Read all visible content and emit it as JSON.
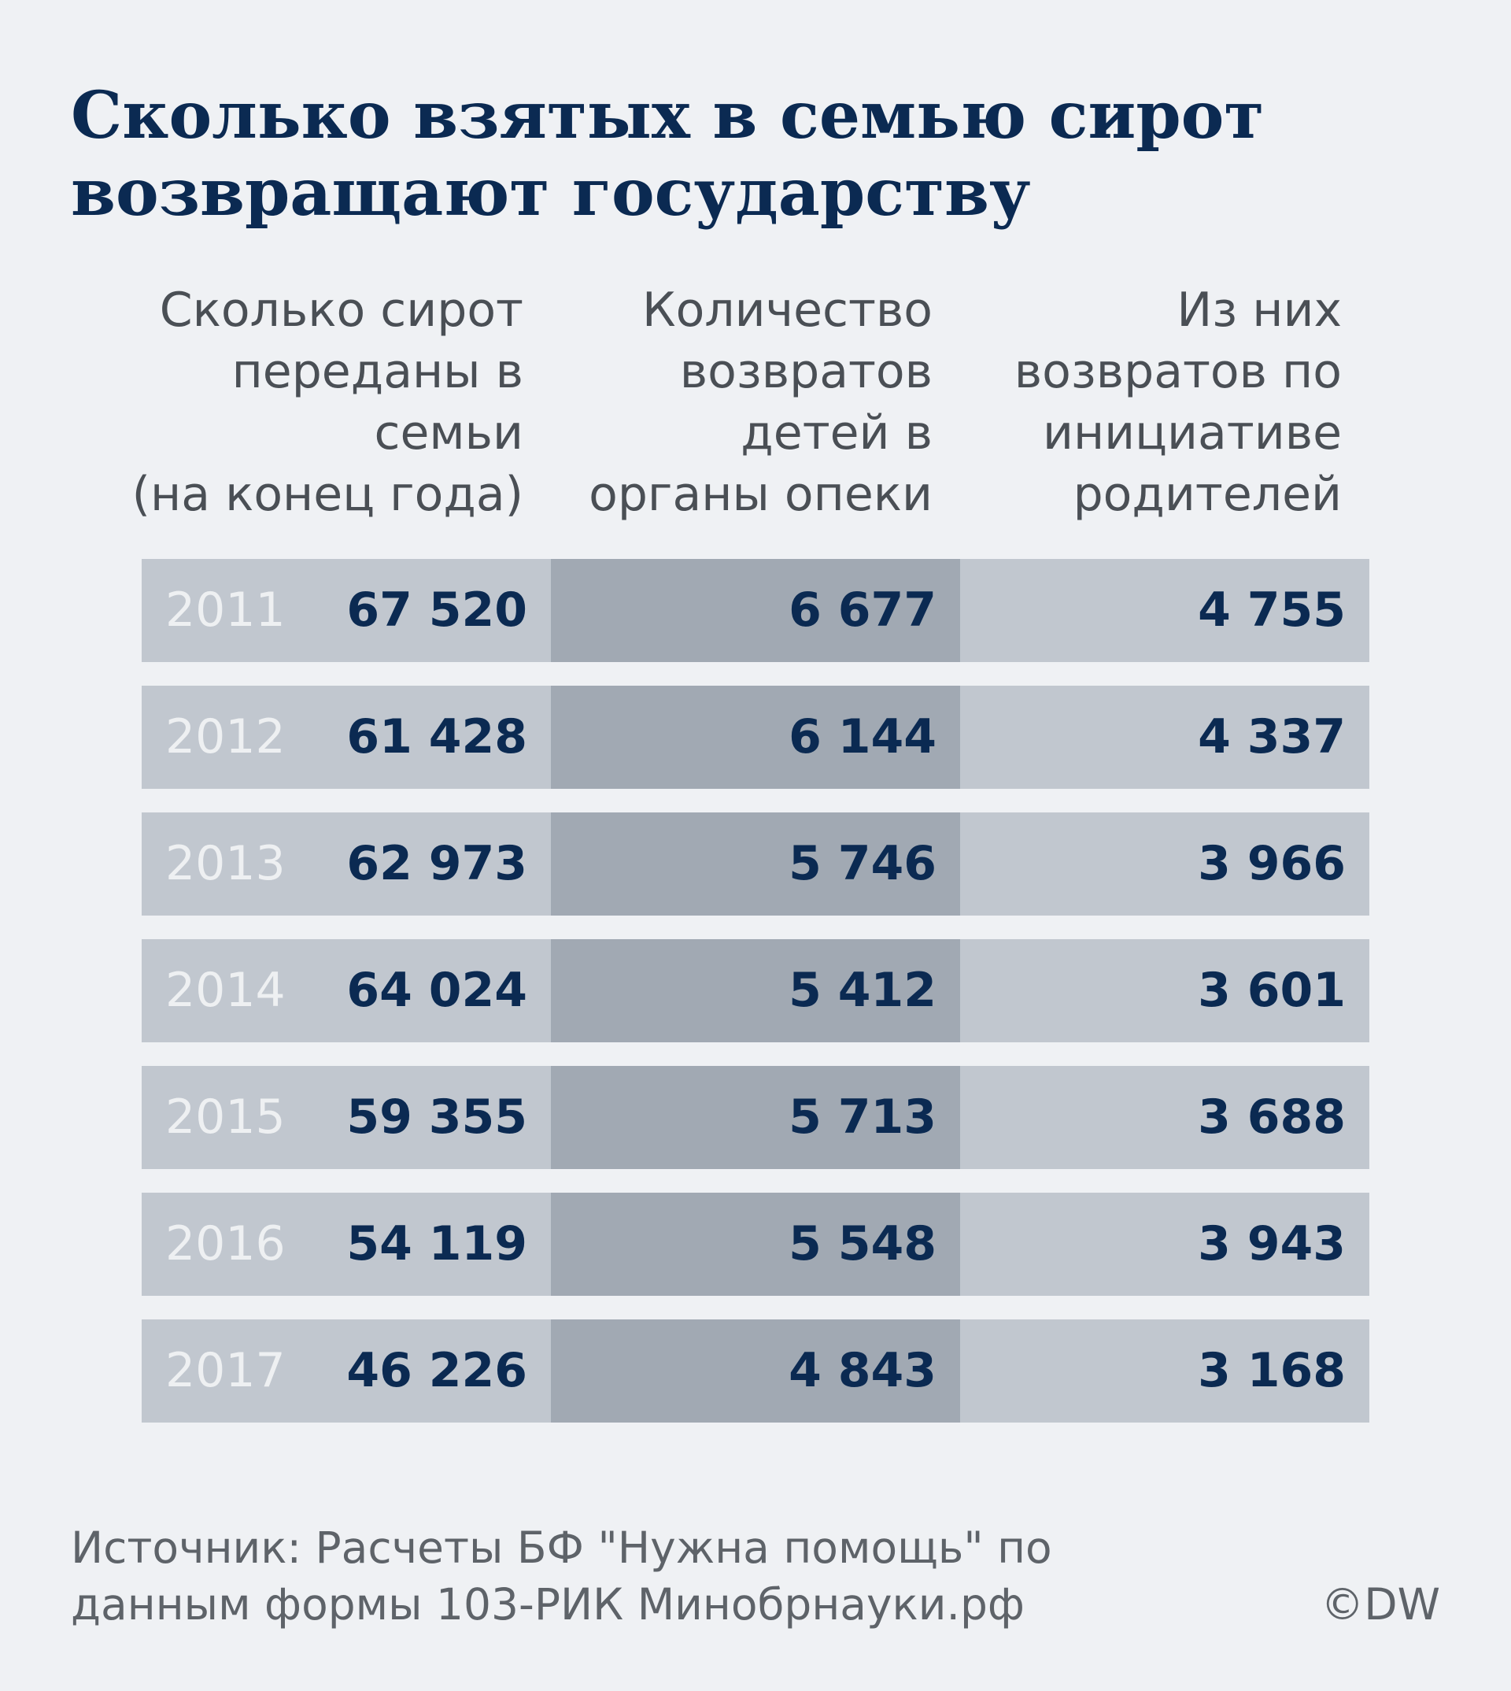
{
  "title_lines": [
    "Сколько взятых в семью сирот",
    "возвращают государству"
  ],
  "column_headers": [
    [
      "Сколько сирот",
      "переданы в",
      "семьи",
      "(на конец года)"
    ],
    [
      "Количество",
      "возвратов",
      "детей в",
      "органы опеки"
    ],
    [
      "Из них",
      "возвратов по",
      "инициативе",
      "родителей"
    ]
  ],
  "chart_data": {
    "type": "table",
    "title": "Сколько взятых в семью сирот возвращают государству",
    "columns": [
      "Сколько сирот переданы в семьи (на конец года)",
      "Количество возвратов детей в органы опеки",
      "Из них возвратов по инициативе родителей"
    ],
    "rows": [
      {
        "year": "2011",
        "values": [
          "67 520",
          "6 677",
          "4 755"
        ]
      },
      {
        "year": "2012",
        "values": [
          "61 428",
          "6 144",
          "4 337"
        ]
      },
      {
        "year": "2013",
        "values": [
          "62 973",
          "5 746",
          "3 966"
        ]
      },
      {
        "year": "2014",
        "values": [
          "64 024",
          "5 412",
          "3 601"
        ]
      },
      {
        "year": "2015",
        "values": [
          "59 355",
          "5 713",
          "3 688"
        ]
      },
      {
        "year": "2016",
        "values": [
          "54 119",
          "5 548",
          "3 943"
        ]
      },
      {
        "year": "2017",
        "values": [
          "46 226",
          "4 843",
          "3 168"
        ]
      }
    ]
  },
  "source_lines": [
    "Источник: Расчеты БФ \"Нужна помощь\" по",
    "данным формы 103-РИК Минобрнауки.рф"
  ],
  "copyright": "©DW",
  "colors": {
    "background": "#eff1f4",
    "title": "#0b2a52",
    "cell_light": "#c1c7cf",
    "cell_dark": "#a1a9b3",
    "year_text": "#eef0f2"
  }
}
